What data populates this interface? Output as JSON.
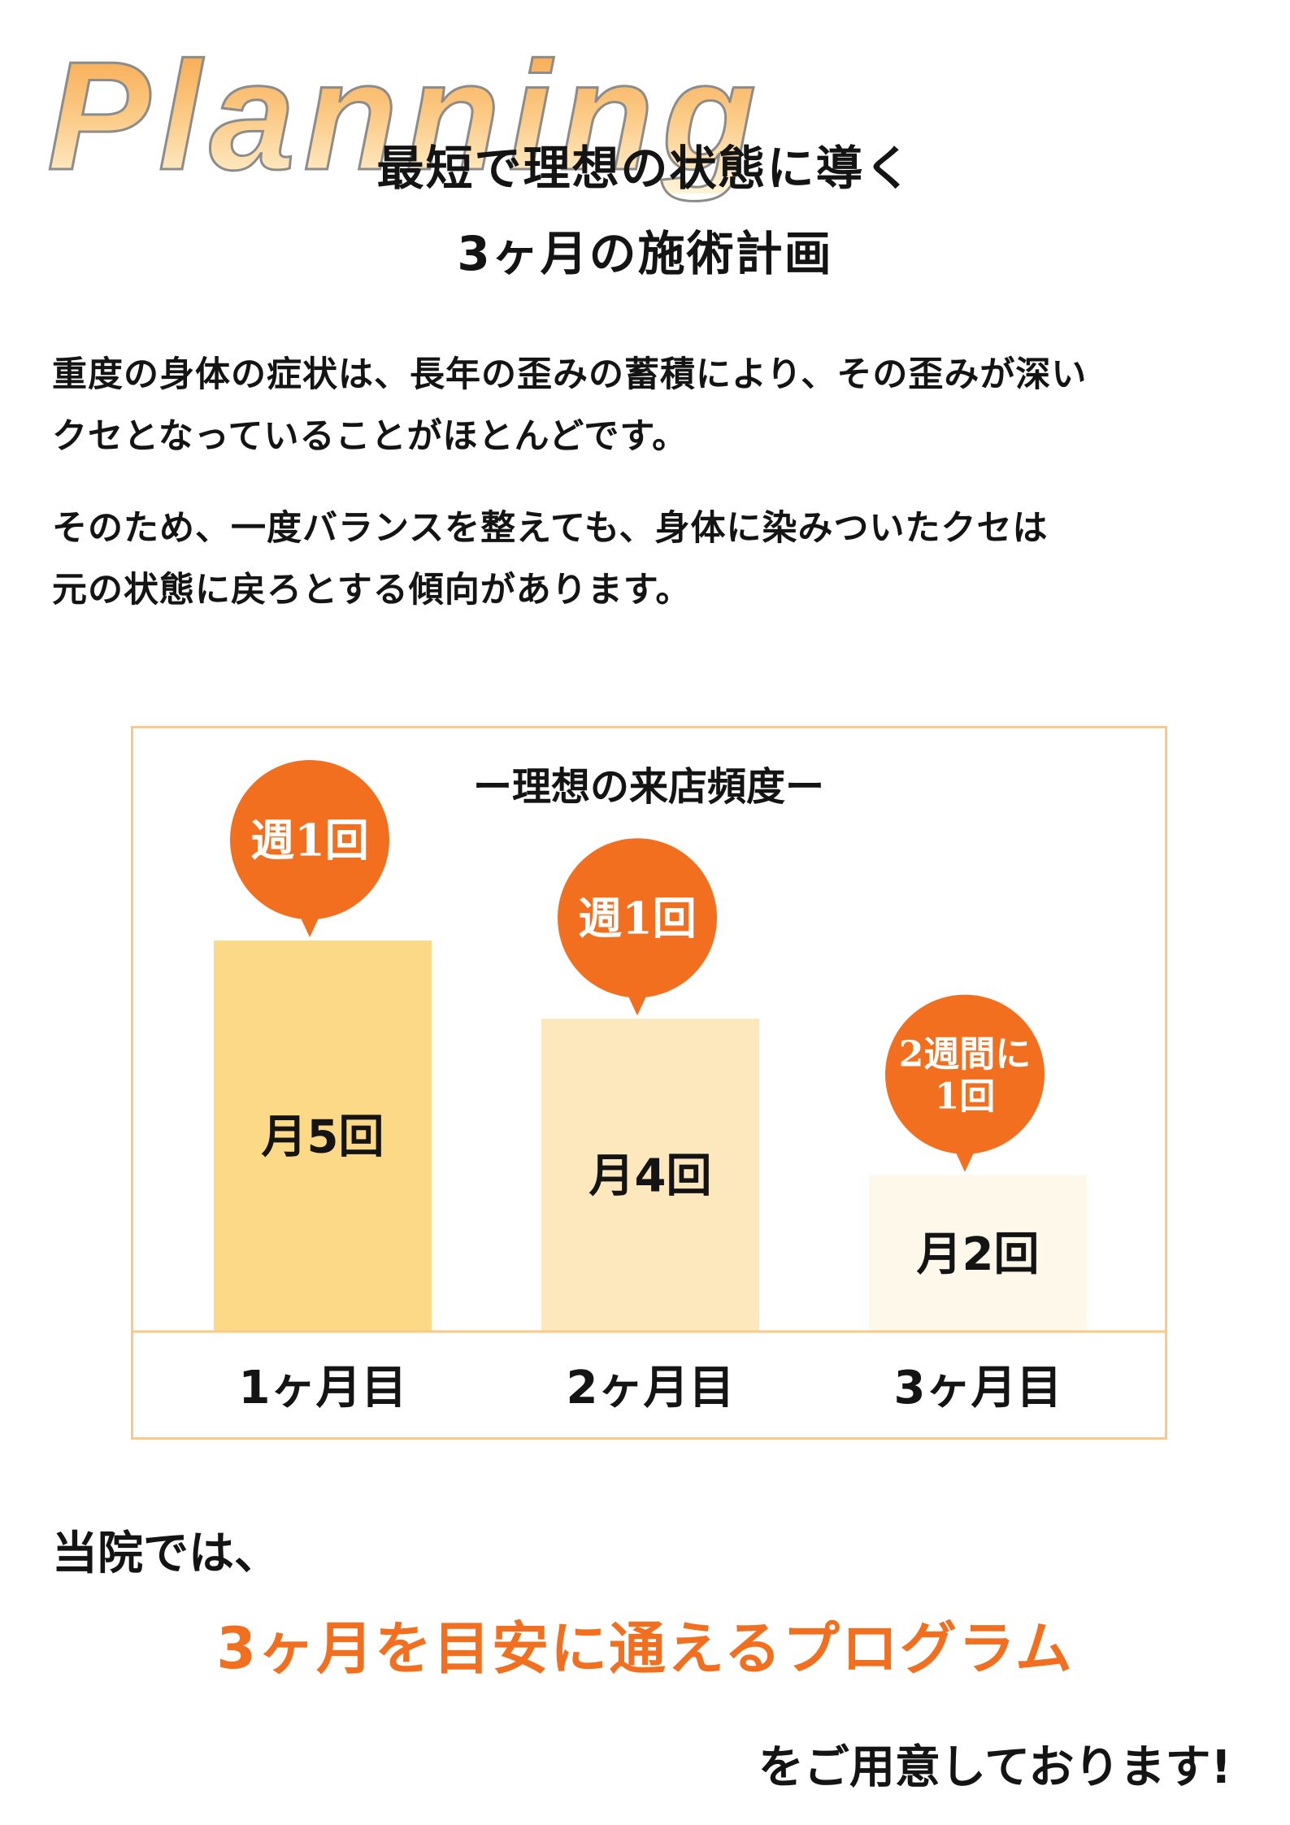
{
  "header": {
    "deco_word": "Planning",
    "title_line1": "最短で理想の状態に導く",
    "title_line2": "3ヶ月の施術計画"
  },
  "intro": {
    "p1_line1": "重度の身体の症状は、長年の歪みの蓄積により、その歪みが深い",
    "p1_line2": "クセとなっていることがほとんどです。",
    "p2_line1": "そのため、一度バランスを整えても、身体に染みついたクセは",
    "p2_line2": "元の状態に戻ろとする傾向があります。"
  },
  "colors": {
    "accent": "#f26f1f",
    "frame": "#f9c98a",
    "bar_month1": "#fcd986",
    "bar_month2": "#fde8bd",
    "bar_month3": "#fdf8ea"
  },
  "chart_data": {
    "type": "bar",
    "title": "ー理想の来店頻度ー",
    "categories": [
      "1ヶ月目",
      "2ヶ月目",
      "3ヶ月目"
    ],
    "values": [
      5,
      4,
      2
    ],
    "bar_labels": [
      "月5回",
      "月4回",
      "月2回"
    ],
    "annotations": [
      {
        "category": "1ヶ月目",
        "lines": [
          "週1回"
        ]
      },
      {
        "category": "2ヶ月目",
        "lines": [
          "週1回"
        ]
      },
      {
        "category": "3ヶ月目",
        "lines": [
          "2週間に",
          "1回"
        ]
      }
    ],
    "ylim": [
      0,
      5
    ],
    "grid": false,
    "legend": "none",
    "xlabel": "",
    "ylabel": ""
  },
  "closing": {
    "line1": "当院では、",
    "line2": "3ヶ月を目安に通えるプログラム",
    "line3": "をご用意しております!"
  }
}
